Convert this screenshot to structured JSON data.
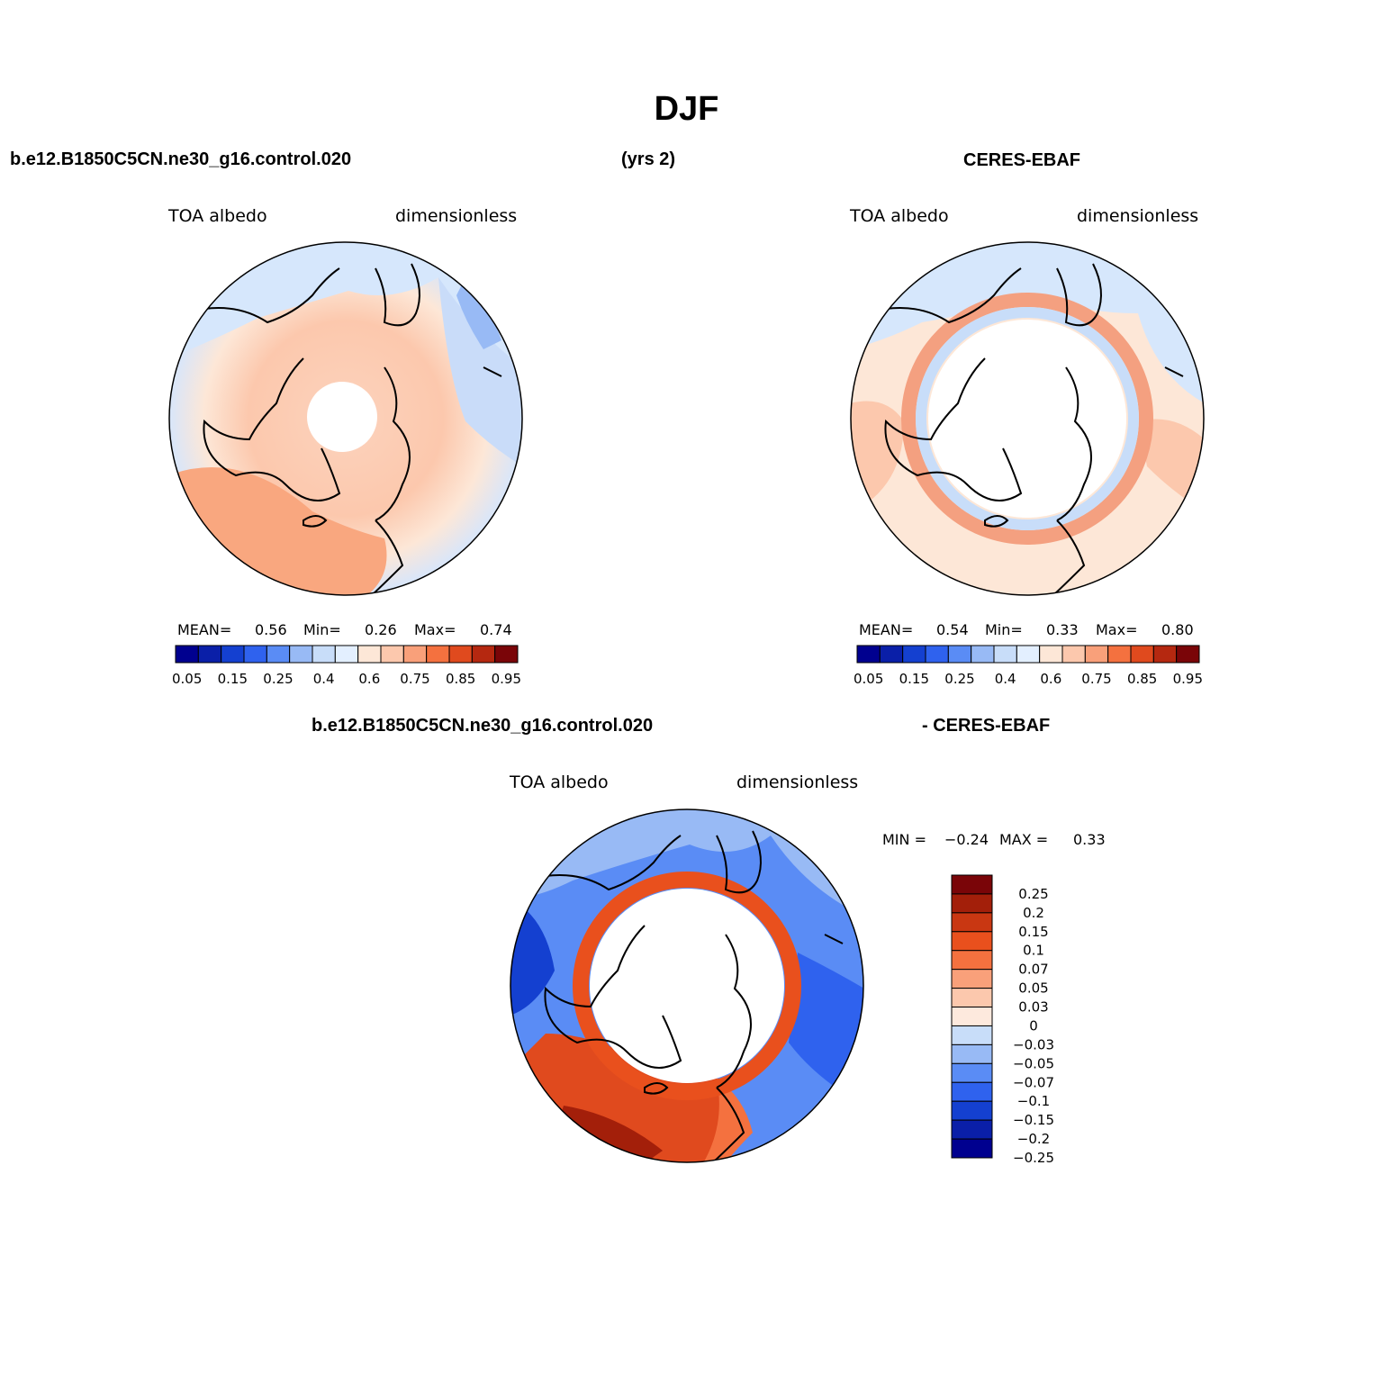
{
  "title": "DJF",
  "header": {
    "case_name": "b.e12.B1850C5CN.ne30_g16.control.020",
    "years": "(yrs 2)",
    "obs_name": "CERES-EBAF",
    "diff_case": "b.e12.B1850C5CN.ne30_g16.control.020",
    "diff_obs": "- CERES-EBAF"
  },
  "colors": {
    "abs": [
      "#00008f",
      "#0a1fa8",
      "#1440d0",
      "#2f62ee",
      "#5a8cf5",
      "#98baf5",
      "#c8ddf9",
      "#e3efff",
      "#fde7d7",
      "#fcc8ad",
      "#f9a07a",
      "#f4713f",
      "#e04a1e",
      "#b52810",
      "#7a0508"
    ],
    "diff": [
      "#00008f",
      "#0a1fa8",
      "#1440d0",
      "#2f62ee",
      "#5a8cf5",
      "#98baf5",
      "#c8ddf9",
      "#fde9dd",
      "#fcc8ad",
      "#f9a07a",
      "#f4713f",
      "#e9501d",
      "#c93712",
      "#a31f0a",
      "#7a0508"
    ]
  },
  "chart_data": [
    {
      "type": "heatmap",
      "projection": "north-polar-stereographic",
      "name": "model",
      "left_label": "TOA albedo",
      "right_label": "dimensionless",
      "stats": {
        "mean_label": "MEAN=",
        "mean": "0.56",
        "min_label": "Min=",
        "min": "0.26",
        "max_label": "Max=",
        "max": "0.74"
      },
      "colorbar": {
        "ticks": [
          "0.05",
          "0.15",
          "0.25",
          "0.4",
          "0.6",
          "0.75",
          "0.85",
          "0.95"
        ]
      }
    },
    {
      "type": "heatmap",
      "projection": "north-polar-stereographic",
      "name": "obs",
      "left_label": "TOA albedo",
      "right_label": "dimensionless",
      "stats": {
        "mean_label": "MEAN=",
        "mean": "0.54",
        "min_label": "Min=",
        "min": "0.33",
        "max_label": "Max=",
        "max": "0.80"
      },
      "colorbar": {
        "ticks": [
          "0.05",
          "0.15",
          "0.25",
          "0.4",
          "0.6",
          "0.75",
          "0.85",
          "0.95"
        ]
      }
    },
    {
      "type": "heatmap",
      "projection": "north-polar-stereographic",
      "name": "difference",
      "left_label": "TOA albedo",
      "right_label": "dimensionless",
      "stats": {
        "min_label": "MIN =",
        "min": "-0.24",
        "max_label": "MAX =",
        "max": "0.33"
      },
      "colorbar": {
        "ticks": [
          "0.25",
          "0.2",
          "0.15",
          "0.1",
          "0.07",
          "0.05",
          "0.03",
          "0",
          "-0.03",
          "-0.05",
          "-0.07",
          "-0.1",
          "-0.15",
          "-0.2",
          "-0.25"
        ]
      }
    }
  ]
}
